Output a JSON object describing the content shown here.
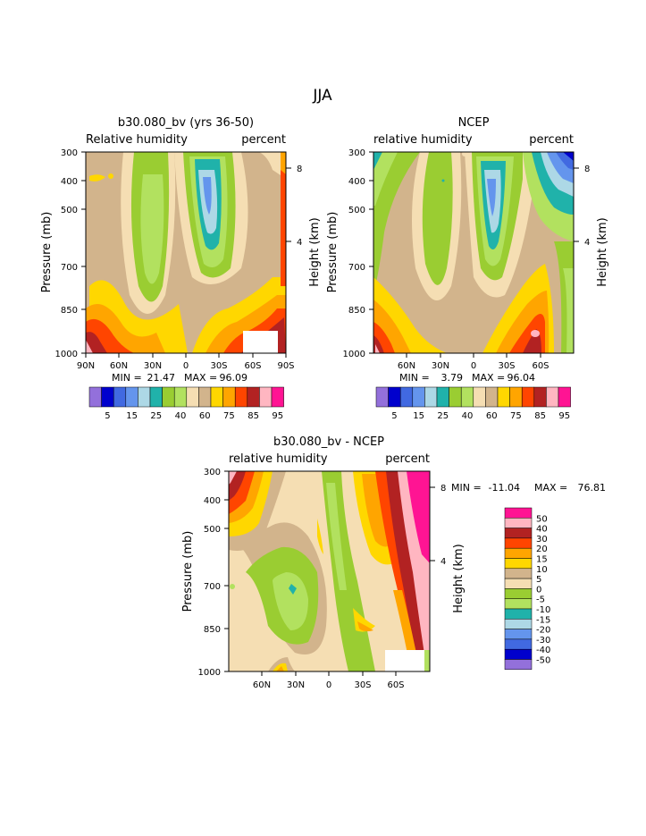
{
  "page": {
    "title": "JJA"
  },
  "colors": {
    "rh_levels": [
      "#9370db",
      "#0000cd",
      "#4169e1",
      "#6495ed",
      "#add8e6",
      "#20b2aa",
      "#9acd32",
      "#b2e15f",
      "#f5deb3",
      "#d2b48c",
      "#ffd700",
      "#ffa500",
      "#ff4500",
      "#b22222",
      "#ffb6c1",
      "#ff1493"
    ],
    "diff_levels": [
      "#9370db",
      "#0000cd",
      "#4169e1",
      "#6495ed",
      "#add8e6",
      "#20b2aa",
      "#b2e15f",
      "#9acd32",
      "#f5deb3",
      "#d2b48c",
      "#ffd700",
      "#ffa500",
      "#ff4500",
      "#b22222",
      "#ffb6c1",
      "#ff1493"
    ]
  },
  "chart_data": [
    {
      "type": "heatmap",
      "title": "b30.080_bv (yrs 36-50)",
      "left_label": "Relative humidity",
      "right_label": "percent",
      "ylabel": "Pressure (mb)",
      "y2label": "Height (km)",
      "x_ticks": [
        "90N",
        "60N",
        "30N",
        "0",
        "30S",
        "60S",
        "90S"
      ],
      "y_ticks": [
        "300",
        "400",
        "500",
        "700",
        "850",
        "1000"
      ],
      "y2_ticks": [
        "8",
        "4"
      ],
      "min_label": "MIN =",
      "min_value": "21.47",
      "max_label": "MAX =",
      "max_value": "96.09",
      "levels": [
        5,
        10,
        15,
        20,
        25,
        30,
        40,
        50,
        60,
        65,
        70,
        75,
        80,
        85,
        90,
        95
      ]
    },
    {
      "type": "heatmap",
      "title": "NCEP",
      "left_label": "relative humidity",
      "right_label": "percent",
      "ylabel": "Pressure (mb)",
      "y2label": "Height (km)",
      "x_ticks": [
        "60N",
        "30N",
        "0",
        "30S",
        "60S"
      ],
      "y_ticks": [
        "300",
        "400",
        "500",
        "700",
        "850",
        "1000"
      ],
      "y2_ticks": [
        "8",
        "4"
      ],
      "min_label": "MIN =",
      "min_value": "3.79",
      "max_label": "MAX =",
      "max_value": "96.04",
      "levels": [
        5,
        10,
        15,
        20,
        25,
        30,
        40,
        50,
        60,
        65,
        70,
        75,
        80,
        85,
        90,
        95
      ]
    },
    {
      "type": "heatmap",
      "title": "b30.080_bv - NCEP",
      "left_label": "relative humidity",
      "right_label": "percent",
      "ylabel": "Pressure (mb)",
      "y2label": "Height (km)",
      "x_ticks": [
        "60N",
        "30N",
        "0",
        "30S",
        "60S"
      ],
      "y_ticks": [
        "300",
        "400",
        "500",
        "700",
        "850",
        "1000"
      ],
      "y2_ticks": [
        "8",
        "4"
      ],
      "min_label": "MIN =",
      "min_value": "-11.04",
      "max_label": "MAX =",
      "max_value": "76.81",
      "levels": [
        -50,
        -40,
        -30,
        -20,
        -15,
        -10,
        -5,
        0,
        5,
        10,
        15,
        20,
        30,
        40,
        50
      ]
    }
  ],
  "colorbar": {
    "labels": [
      "5",
      "15",
      "25",
      "40",
      "60",
      "75",
      "85",
      "95"
    ]
  },
  "diff_colorbar": {
    "labels": [
      "50",
      "40",
      "30",
      "20",
      "15",
      "10",
      "5",
      "0",
      "-5",
      "-10",
      "-15",
      "-20",
      "-30",
      "-40",
      "-50"
    ]
  }
}
